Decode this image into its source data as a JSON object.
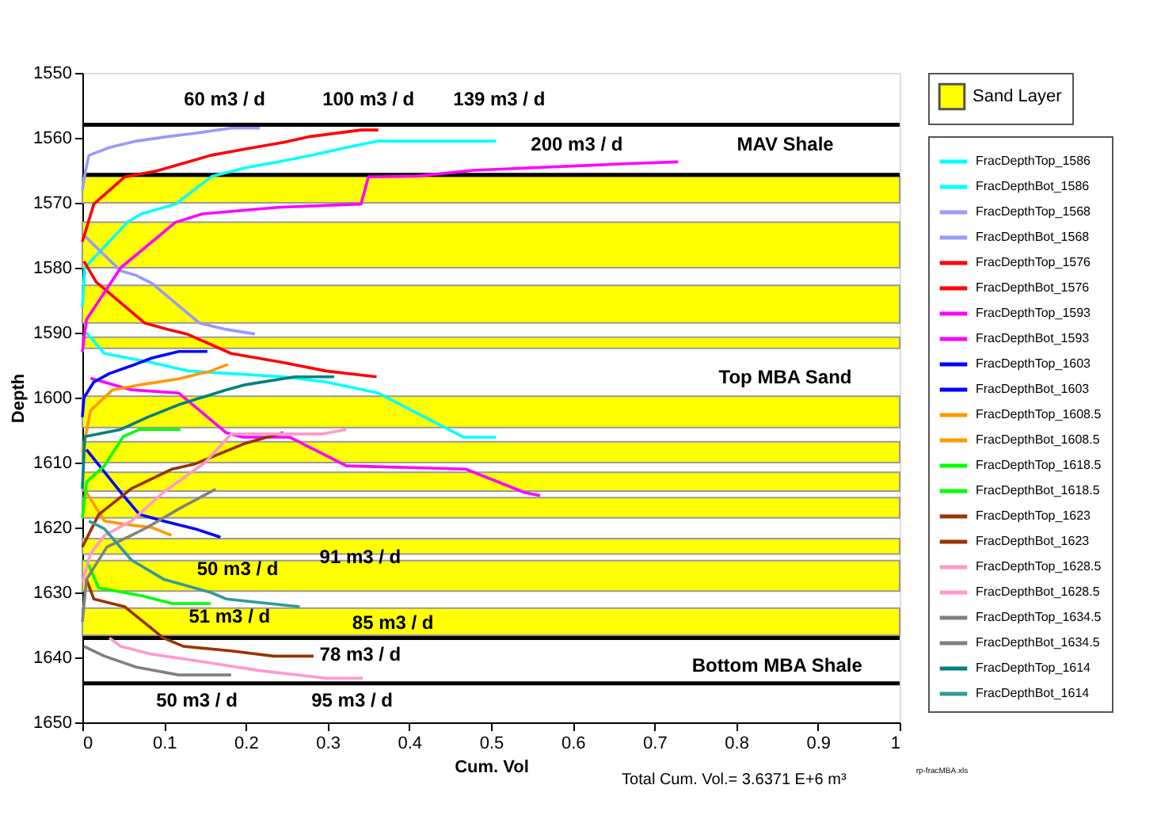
{
  "chart_data": {
    "type": "line",
    "xlabel": "Cum. Vol",
    "ylabel": "Depth",
    "xlim": [
      0,
      1
    ],
    "ylim": [
      1650,
      1550
    ],
    "xticks": [
      0,
      0.1,
      0.2,
      0.3,
      0.4,
      0.5,
      0.6,
      0.7,
      0.8,
      0.9,
      1
    ],
    "yticks": [
      1550,
      1560,
      1570,
      1580,
      1590,
      1600,
      1610,
      1620,
      1630,
      1640,
      1650
    ],
    "grid": false,
    "legend": "right",
    "marker": "none",
    "line_style": "solid",
    "series": [
      {
        "name": "FracDepthTop_1586",
        "color": "#00ffff",
        "x": [
          0,
          0.003,
          0.056,
          0.072,
          0.114,
          0.159,
          0.2,
          0.24,
          0.279,
          0.323,
          0.362,
          0.506
        ],
        "values": [
          1586,
          1580,
          1572.9,
          1571.7,
          1570.2,
          1565.9,
          1564.6,
          1563.7,
          1562.7,
          1561.5,
          1560.5,
          1560.5
        ]
      },
      {
        "name": "FracDepthBot_1586",
        "color": "#00ffff",
        "x": [
          0.005,
          0.027,
          0.085,
          0.13,
          0.246,
          0.298,
          0.362,
          0.448,
          0.467,
          0.506
        ],
        "values": [
          1590,
          1593.2,
          1594.6,
          1595.9,
          1596.8,
          1597.6,
          1599.3,
          1604.9,
          1606.1,
          1606.1
        ]
      },
      {
        "name": "FracDepthTop_1568",
        "color": "#9999ff",
        "x": [
          0,
          0.004,
          0.008,
          0.033,
          0.066,
          0.105,
          0.138,
          0.182,
          0.217
        ],
        "values": [
          1568,
          1565,
          1562.7,
          1561.5,
          1560.5,
          1559.8,
          1559.3,
          1558.5,
          1558.5
        ]
      },
      {
        "name": "FracDepthBot_1568",
        "color": "#9999ff",
        "x": [
          0.002,
          0.047,
          0.066,
          0.085,
          0.143,
          0.176,
          0.211
        ],
        "values": [
          1575,
          1580.5,
          1581.2,
          1582.4,
          1588.5,
          1589.5,
          1590.2
        ]
      },
      {
        "name": "FracDepthTop_1576",
        "color": "#ff0000",
        "x": [
          0,
          0.014,
          0.052,
          0.091,
          0.124,
          0.157,
          0.2,
          0.246,
          0.279,
          0.341,
          0.362
        ],
        "values": [
          1576,
          1570.2,
          1566,
          1565.1,
          1563.9,
          1562.7,
          1561.7,
          1560.7,
          1559.8,
          1558.8,
          1558.8
        ]
      },
      {
        "name": "FracDepthBot_1576",
        "color": "#ff0000",
        "x": [
          0.002,
          0.017,
          0.076,
          0.105,
          0.128,
          0.182,
          0.246,
          0.298,
          0.36
        ],
        "values": [
          1579,
          1582.2,
          1588.5,
          1589.5,
          1590.2,
          1593.2,
          1594.6,
          1595.9,
          1596.8
        ]
      },
      {
        "name": "FracDepthTop_1593",
        "color": "#ff00ff",
        "x": [
          0,
          0.005,
          0.047,
          0.114,
          0.147,
          0.24,
          0.341,
          0.35,
          0.409,
          0.479,
          0.663,
          0.729
        ],
        "values": [
          1593,
          1588,
          1580,
          1573,
          1571.7,
          1570.7,
          1570.2,
          1566,
          1565.9,
          1565,
          1564,
          1563.7
        ]
      },
      {
        "name": "FracDepthBot_1593",
        "color": "#ff00ff",
        "x": [
          0.01,
          0.06,
          0.118,
          0.176,
          0.196,
          0.254,
          0.323,
          0.469,
          0.541,
          0.56
        ],
        "values": [
          1597,
          1598.8,
          1599.3,
          1605.4,
          1606.1,
          1606.1,
          1610.5,
          1611,
          1614.6,
          1615.1
        ]
      },
      {
        "name": "FracDepthTop_1603",
        "color": "#0000ff",
        "x": [
          0,
          0.002,
          0.014,
          0.033,
          0.06,
          0.085,
          0.118,
          0.153
        ],
        "values": [
          1603,
          1600,
          1597.6,
          1596.3,
          1595.1,
          1593.9,
          1592.9,
          1592.9
        ]
      },
      {
        "name": "FracDepthBot_1603",
        "color": "#0000ff",
        "x": [
          0.005,
          0.047,
          0.07,
          0.099,
          0.138,
          0.169
        ],
        "values": [
          1608,
          1614.6,
          1618,
          1619,
          1620.2,
          1621.5
        ]
      },
      {
        "name": "FracDepthTop_1608.5",
        "color": "#ff9900",
        "x": [
          0,
          0.01,
          0.037,
          0.072,
          0.118,
          0.157,
          0.178
        ],
        "values": [
          1608.5,
          1602,
          1598.8,
          1598,
          1597.1,
          1595.9,
          1594.9
        ]
      },
      {
        "name": "FracDepthBot_1608.5",
        "color": "#ff9900",
        "x": [
          0.002,
          0.027,
          0.052,
          0.085,
          0.109
        ],
        "values": [
          1614,
          1619,
          1619.5,
          1620,
          1621.2
        ]
      },
      {
        "name": "FracDepthTop_1618.5",
        "color": "#00ff00",
        "x": [
          0,
          0.005,
          0.027,
          0.05,
          0.07,
          0.12
        ],
        "values": [
          1618.5,
          1613,
          1610.5,
          1606,
          1604.9,
          1604.9
        ]
      },
      {
        "name": "FracDepthBot_1618.5",
        "color": "#00ff00",
        "x": [
          0.005,
          0.02,
          0.072,
          0.11,
          0.157
        ],
        "values": [
          1625,
          1629.3,
          1630.5,
          1631.7,
          1631.7
        ]
      },
      {
        "name": "FracDepthTop_1623",
        "color": "#993300",
        "x": [
          0,
          0.02,
          0.06,
          0.11,
          0.138,
          0.2,
          0.246
        ],
        "values": [
          1623,
          1618,
          1614,
          1611,
          1610.2,
          1607,
          1605.4
        ]
      },
      {
        "name": "FracDepthBot_1623",
        "color": "#993300",
        "x": [
          0.005,
          0.014,
          0.052,
          0.099,
          0.124,
          0.182,
          0.234,
          0.283
        ],
        "values": [
          1628,
          1631,
          1632.2,
          1637,
          1638.3,
          1639,
          1639.8,
          1639.8
        ]
      },
      {
        "name": "FracDepthTop_1628.5",
        "color": "#ff99cc",
        "x": [
          0,
          0.01,
          0.027,
          0.06,
          0.099,
          0.15,
          0.182,
          0.293,
          0.323
        ],
        "values": [
          1628.5,
          1624,
          1621.2,
          1619,
          1614.6,
          1610,
          1605.6,
          1605.6,
          1604.9
        ]
      },
      {
        "name": "FracDepthBot_1628.5",
        "color": "#ff99cc",
        "x": [
          0.033,
          0.047,
          0.085,
          0.149,
          0.215,
          0.298,
          0.343
        ],
        "values": [
          1637,
          1638.3,
          1639.5,
          1640.7,
          1642,
          1643.2,
          1643.2
        ]
      },
      {
        "name": "FracDepthTop_1634.5",
        "color": "#808080",
        "x": [
          0,
          0.005,
          0.03,
          0.06,
          0.079,
          0.12,
          0.163
        ],
        "values": [
          1634.5,
          1628,
          1623,
          1621.2,
          1620,
          1617,
          1614.1
        ]
      },
      {
        "name": "FracDepthBot_1634.5",
        "color": "#808080",
        "x": [
          0.002,
          0.027,
          0.066,
          0.118,
          0.182
        ],
        "values": [
          1638.3,
          1639.8,
          1641.5,
          1642.7,
          1642.7
        ]
      },
      {
        "name": "FracDepthTop_1614",
        "color": "#008080",
        "x": [
          0,
          0.003,
          0.047,
          0.08,
          0.12,
          0.176,
          0.2,
          0.26,
          0.308
        ],
        "values": [
          1614,
          1606,
          1604.9,
          1603,
          1601,
          1598.8,
          1598,
          1596.8,
          1596.8
        ]
      },
      {
        "name": "FracDepthBot_1614",
        "color": "#339999",
        "x": [
          0.008,
          0.027,
          0.06,
          0.1,
          0.157,
          0.176,
          0.266
        ],
        "values": [
          1619,
          1620.2,
          1625,
          1628,
          1630,
          1631,
          1632.2
        ]
      }
    ],
    "bands": [
      {
        "axis": "y",
        "from": 1565.9,
        "to": 1570,
        "label": "Sand Layer",
        "color": "#ffff00"
      },
      {
        "axis": "y",
        "from": 1573,
        "to": 1580,
        "color": "#ffff00"
      },
      {
        "axis": "y",
        "from": 1582.7,
        "to": 1588.5,
        "color": "#ffff00"
      },
      {
        "axis": "y",
        "from": 1590.7,
        "to": 1592.4,
        "color": "#ffff00"
      },
      {
        "axis": "y",
        "from": 1599.8,
        "to": 1604.6,
        "color": "#ffff00"
      },
      {
        "axis": "y",
        "from": 1606.8,
        "to": 1610,
        "color": "#ffff00"
      },
      {
        "axis": "y",
        "from": 1611.5,
        "to": 1614.4,
        "color": "#ffff00"
      },
      {
        "axis": "y",
        "from": 1615.4,
        "to": 1618.5,
        "color": "#ffff00"
      },
      {
        "axis": "y",
        "from": 1621.7,
        "to": 1624.1,
        "color": "#ffff00"
      },
      {
        "axis": "y",
        "from": 1625.1,
        "to": 1629.8,
        "color": "#ffff00"
      },
      {
        "axis": "y",
        "from": 1632.4,
        "to": 1636.6,
        "color": "#ffff00"
      }
    ],
    "ref_lines": [
      {
        "axis": "y",
        "value": 1558,
        "color": "#000000"
      },
      {
        "axis": "y",
        "value": 1565.7,
        "color": "#000000"
      },
      {
        "axis": "y",
        "value": 1637,
        "color": "#000000"
      },
      {
        "axis": "y",
        "value": 1644,
        "color": "#000000"
      }
    ],
    "annotations": [
      "60 m3 / d",
      "100 m3 / d",
      "139 m3 / d",
      "200 m3 / d",
      "MAV Shale",
      "Top MBA Sand",
      "50 m3 / d",
      "91 m3 / d",
      "51 m3 / d",
      "85 m3 / d",
      "78 m3 / d",
      "Bottom MBA Shale",
      "50 m3 / d",
      "95 m3 / d",
      "Total Cum. Vol.= 3.6371 E+6 m³",
      "rp-fracMBA.xls"
    ]
  }
}
